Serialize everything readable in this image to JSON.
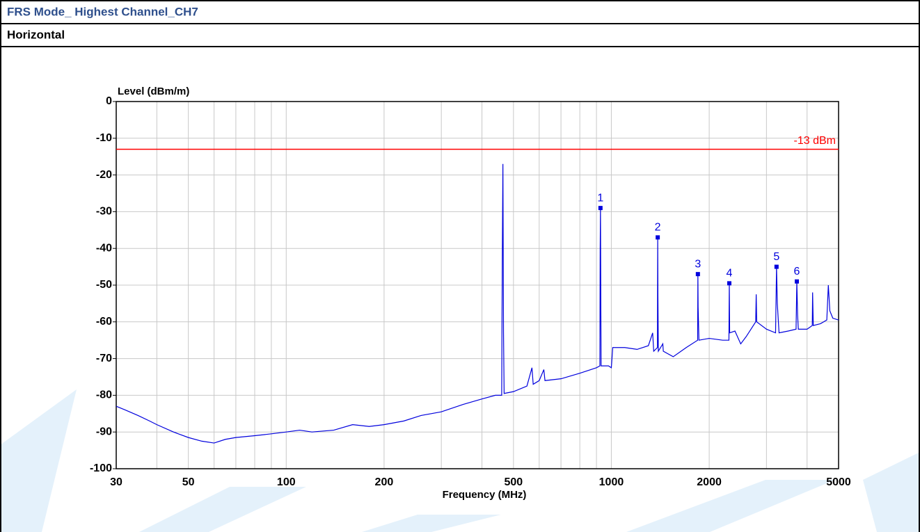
{
  "header": {
    "title": "FRS Mode_ Highest Channel_CH7",
    "subtitle": "Horizontal"
  },
  "chart_data": {
    "type": "line",
    "ylabel": "Level (dBm/m)",
    "xlabel": "Frequency (MHz)",
    "xscale": "log",
    "grid": true,
    "xlim": [
      30,
      5000
    ],
    "ylim": [
      -100,
      0
    ],
    "xticks": [
      30,
      50,
      100,
      200,
      500,
      1000,
      2000,
      5000
    ],
    "xminor": [
      40,
      60,
      70,
      80,
      90,
      300,
      400,
      600,
      700,
      800,
      900,
      3000,
      4000
    ],
    "yticks": [
      0,
      -10,
      -20,
      -30,
      -40,
      -50,
      -60,
      -70,
      -80,
      -90,
      -100
    ],
    "limit_line": {
      "value": -13,
      "label": "-13 dBm",
      "color": "#ff0000"
    },
    "x": [
      30,
      32,
      35,
      38,
      40,
      45,
      50,
      55,
      60,
      65,
      70,
      80,
      90,
      100,
      110,
      120,
      140,
      160,
      180,
      200,
      230,
      260,
      300,
      350,
      400,
      440,
      460,
      462,
      464,
      466,
      468,
      500,
      550,
      570,
      575,
      600,
      620,
      625,
      700,
      800,
      900,
      922,
      924,
      926,
      928,
      930,
      980,
      1000,
      1010,
      1100,
      1200,
      1300,
      1340,
      1350,
      1386,
      1389,
      1391,
      1395,
      1440,
      1445,
      1550,
      1700,
      1843,
      1846,
      1849,
      1860,
      2000,
      2200,
      2300,
      2303,
      2306,
      2312,
      2400,
      2500,
      2600,
      2780,
      2790,
      2800,
      3000,
      3200,
      3222,
      3240,
      3280,
      3500,
      3700,
      3720,
      3740,
      3760,
      4000,
      4150,
      4160,
      4180,
      4400,
      4600,
      4650,
      4700,
      4800,
      5000
    ],
    "series": [
      {
        "name": "Horizontal",
        "color": "#0000dd",
        "values": [
          -83,
          -84,
          -85.5,
          -87,
          -88,
          -90,
          -91.5,
          -92.5,
          -93,
          -92,
          -91.5,
          -91,
          -90.5,
          -90,
          -89.5,
          -90,
          -89.5,
          -88,
          -88.5,
          -88,
          -87,
          -85.5,
          -84.5,
          -82.5,
          -81,
          -80,
          -80,
          -43,
          -17,
          -63,
          -79.5,
          -79,
          -77.5,
          -72.5,
          -77,
          -76,
          -73,
          -76,
          -75.5,
          -74,
          -72.5,
          -72,
          -40,
          -29,
          -51,
          -72,
          -72,
          -72.5,
          -67,
          -67,
          -67.5,
          -66.5,
          -63,
          -68,
          -67,
          -37,
          -53,
          -68,
          -66,
          -68,
          -69.5,
          -67,
          -65,
          -47,
          -56,
          -65,
          -64.5,
          -65,
          -65,
          -57,
          -49.5,
          -63,
          -62.5,
          -66,
          -64,
          -60,
          -52.5,
          -60,
          -62,
          -63,
          -45,
          -55,
          -63,
          -62.5,
          -62,
          -49,
          -58,
          -62,
          -62,
          -61,
          -52,
          -61,
          -60.5,
          -59.5,
          -50,
          -57,
          -59,
          -59.5
        ]
      }
    ],
    "markers": [
      {
        "label": "1",
        "x": 926,
        "y": -29
      },
      {
        "label": "2",
        "x": 1389,
        "y": -37
      },
      {
        "label": "3",
        "x": 1846,
        "y": -47
      },
      {
        "label": "4",
        "x": 2306,
        "y": -49.5
      },
      {
        "label": "5",
        "x": 3222,
        "y": -45
      },
      {
        "label": "6",
        "x": 3720,
        "y": -49
      }
    ],
    "marker_color": "#0000dd"
  }
}
